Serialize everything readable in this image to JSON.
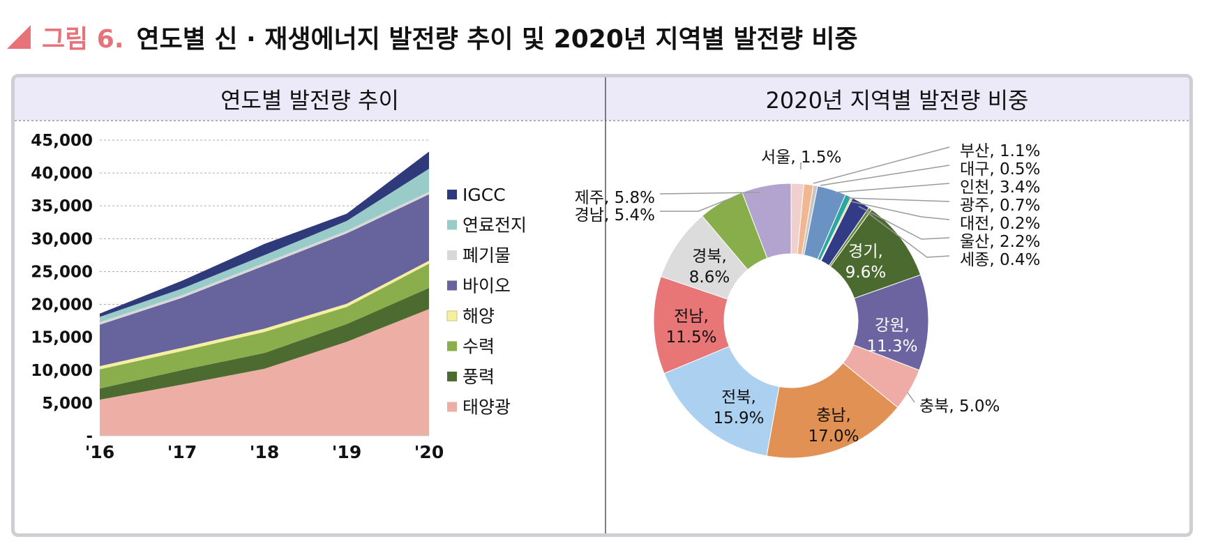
{
  "figure": {
    "number": "그림 6.",
    "title": "연도별 신 · 재생에너지 발전량 추이 및 2020년 지역별 발전량 비중"
  },
  "colors": {
    "accent": "#e8727a",
    "header_bg": "#eceaf8"
  },
  "chart_data": [
    {
      "type": "area",
      "stacked": true,
      "title": "연도별 발전량 추이",
      "categories": [
        "'16",
        "'17",
        "'18",
        "'19",
        "'20"
      ],
      "ylim": [
        0,
        45000
      ],
      "yticks": [
        {
          "value": 0,
          "label": "-"
        },
        {
          "value": 5000,
          "label": "5,000"
        },
        {
          "value": 10000,
          "label": "10,000"
        },
        {
          "value": 15000,
          "label": "15,000"
        },
        {
          "value": 20000,
          "label": "20,000"
        },
        {
          "value": 25000,
          "label": "25,000"
        },
        {
          "value": 30000,
          "label": "30,000"
        },
        {
          "value": 35000,
          "label": "35,000"
        },
        {
          "value": 40000,
          "label": "40,000"
        },
        {
          "value": 45000,
          "label": "45,000"
        }
      ],
      "grid": true,
      "legend_position": "right",
      "series": [
        {
          "name": "태양광",
          "color": "#ecaea5",
          "values": [
            5500,
            7800,
            10200,
            14300,
            19300
          ]
        },
        {
          "name": "풍력",
          "color": "#4c6b30",
          "values": [
            1700,
            2200,
            2400,
            2700,
            3200
          ]
        },
        {
          "name": "수력",
          "color": "#8aae4c",
          "values": [
            2900,
            2900,
            3200,
            2600,
            3700
          ]
        },
        {
          "name": "해양",
          "color": "#f4f0a0",
          "values": [
            500,
            500,
            500,
            500,
            450
          ]
        },
        {
          "name": "바이오",
          "color": "#67639d",
          "values": [
            6300,
            7600,
            9600,
            10700,
            10100
          ]
        },
        {
          "name": "폐기물",
          "color": "#d8d8d8",
          "values": [
            400,
            400,
            400,
            400,
            400
          ]
        },
        {
          "name": "연료전지",
          "color": "#99ccc9",
          "values": [
            800,
            1000,
            1200,
            1500,
            3500
          ]
        },
        {
          "name": "IGCC",
          "color": "#2f3a7a",
          "values": [
            500,
            1200,
            1700,
            1100,
            2600
          ]
        }
      ]
    },
    {
      "type": "pie",
      "donut": true,
      "title": "2020년 지역별 발전량 비중",
      "slices": [
        {
          "name": "서울",
          "value": 1.5,
          "label": "서울, 1.5%",
          "color": "#f0d0ce"
        },
        {
          "name": "부산",
          "value": 1.1,
          "label": "부산, 1.1%",
          "color": "#f2b790"
        },
        {
          "name": "대구",
          "value": 0.5,
          "label": "대구, 0.5%",
          "color": "#c9c7c3"
        },
        {
          "name": "인천",
          "value": 3.4,
          "label": "인천, 3.4%",
          "color": "#6a93c4"
        },
        {
          "name": "광주",
          "value": 0.7,
          "label": "광주, 0.7%",
          "color": "#2aa6a3"
        },
        {
          "name": "대전",
          "value": 0.2,
          "label": "대전, 0.2%",
          "color": "#e2d36c"
        },
        {
          "name": "울산",
          "value": 2.2,
          "label": "울산, 2.2%",
          "color": "#323c86"
        },
        {
          "name": "세종",
          "value": 0.4,
          "label": "세종, 0.4%",
          "color": "#6c8a3c"
        },
        {
          "name": "경기",
          "value": 9.6,
          "label": "경기,",
          "pct": "9.6%",
          "color": "#4b6a2f"
        },
        {
          "name": "강원",
          "value": 11.3,
          "label": "강원,",
          "pct": "11.3%",
          "color": "#6b64a0"
        },
        {
          "name": "충북",
          "value": 5.0,
          "label": "충북, 5.0%",
          "color": "#efaca6"
        },
        {
          "name": "충남",
          "value": 17.0,
          "label": "충남,",
          "pct": "17.0%",
          "color": "#e29155"
        },
        {
          "name": "전북",
          "value": 15.9,
          "label": "전북,",
          "pct": "15.9%",
          "color": "#acd0ef"
        },
        {
          "name": "전남",
          "value": 11.5,
          "label": "전남,",
          "pct": "11.5%",
          "color": "#e97677"
        },
        {
          "name": "경북",
          "value": 8.6,
          "label": "경북,",
          "pct": "8.6%",
          "color": "#dcdcdc"
        },
        {
          "name": "경남",
          "value": 5.4,
          "label": "경남, 5.4%",
          "color": "#88ad4b"
        },
        {
          "name": "제주",
          "value": 5.8,
          "label": "제주, 5.8%",
          "color": "#b3a4cf"
        }
      ]
    }
  ]
}
